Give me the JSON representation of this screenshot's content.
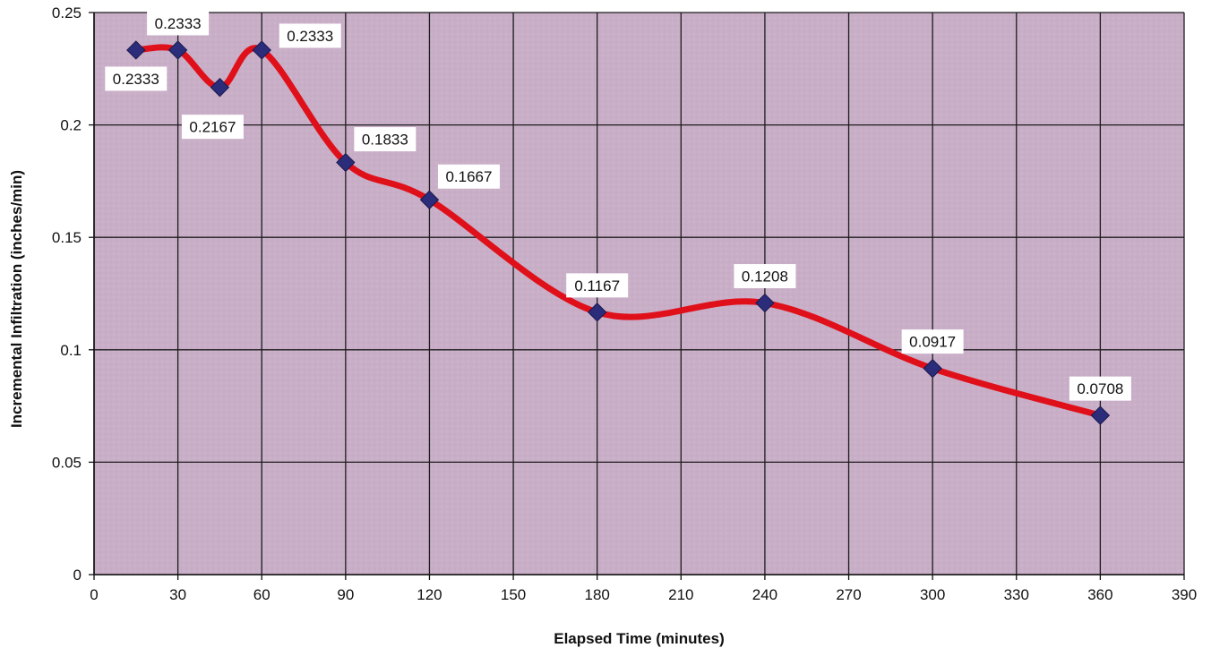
{
  "chart_data": {
    "type": "line",
    "title": "",
    "xlabel": "Elapsed Time (minutes)",
    "ylabel": "Incremental Infiltration (inches/min)",
    "xlim": [
      0,
      390
    ],
    "ylim": [
      0,
      0.25
    ],
    "x_ticks": [
      0,
      30,
      60,
      90,
      120,
      150,
      180,
      210,
      240,
      270,
      300,
      330,
      360,
      390
    ],
    "y_ticks": [
      0,
      0.05,
      0.1,
      0.15,
      0.2,
      0.25
    ],
    "x_tick_labels": [
      "0",
      "30",
      "60",
      "90",
      "120",
      "150",
      "180",
      "210",
      "240",
      "270",
      "300",
      "330",
      "360",
      "390"
    ],
    "y_tick_labels": [
      "0",
      "0.05",
      "0.1",
      "0.15",
      "0.2",
      "0.25"
    ],
    "grid": true,
    "legend": "none",
    "smoothed": true,
    "series": [
      {
        "color": "#e0101a",
        "marker": "diamond",
        "marker_color": "#2b2c7a",
        "points": [
          {
            "x": 15,
            "y": 0.2333,
            "label": "0.2333",
            "label_side": "below"
          },
          {
            "x": 30,
            "y": 0.2333,
            "label": "0.2333",
            "label_side": "above"
          },
          {
            "x": 45,
            "y": 0.2167,
            "label": "0.2167",
            "label_side": "below"
          },
          {
            "x": 60,
            "y": 0.2333,
            "label": "0.2333",
            "label_side": "right"
          },
          {
            "x": 90,
            "y": 0.1833,
            "label": "0.1833",
            "label_side": "above-right"
          },
          {
            "x": 120,
            "y": 0.1667,
            "label": "0.1667",
            "label_side": "above-right"
          },
          {
            "x": 180,
            "y": 0.1167,
            "label": "0.1167",
            "label_side": "above"
          },
          {
            "x": 240,
            "y": 0.1208,
            "label": "0.1208",
            "label_side": "above"
          },
          {
            "x": 300,
            "y": 0.0917,
            "label": "0.0917",
            "label_side": "above"
          },
          {
            "x": 360,
            "y": 0.0708,
            "label": "0.0708",
            "label_side": "above"
          }
        ]
      }
    ],
    "colors": {
      "plot_background": "#c9aec7",
      "grid": "#1c1c1c",
      "line": "#e0101a",
      "marker": "#2b2c7a"
    }
  }
}
